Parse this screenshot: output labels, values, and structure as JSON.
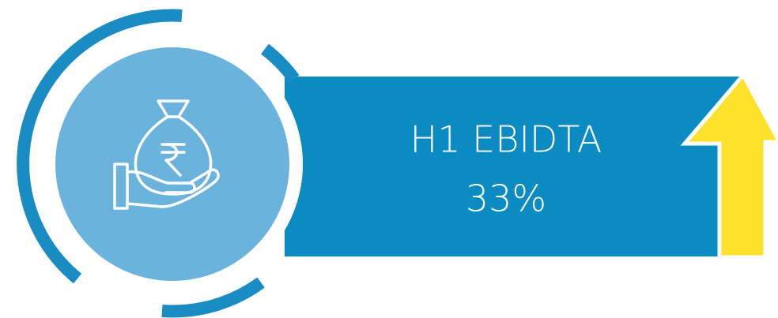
{
  "card": {
    "label": "H1 EBIDTA",
    "value": "33%"
  }
}
